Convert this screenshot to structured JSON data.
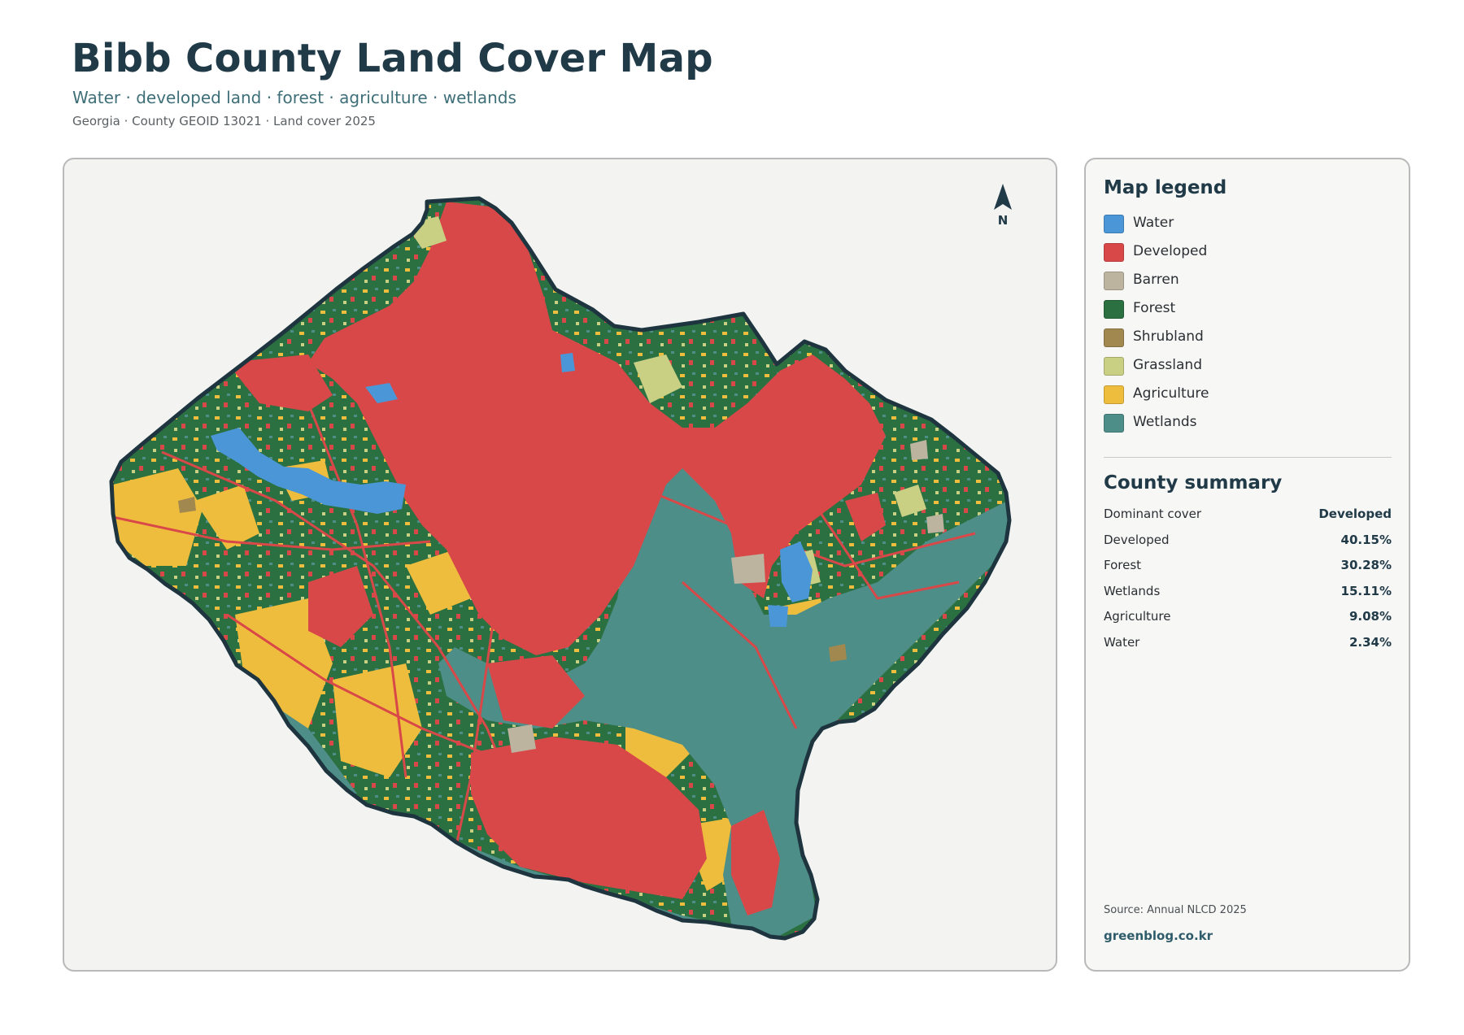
{
  "header": {
    "title": "Bibb County Land Cover Map",
    "subtitle": "Water · developed land · forest · agriculture · wetlands",
    "meta": "Georgia · County GEOID 13021 · Land cover 2025"
  },
  "map": {
    "north_label": "N"
  },
  "legend": {
    "title": "Map legend",
    "items": [
      {
        "label": "Water",
        "color": "#4a96d6"
      },
      {
        "label": "Developed",
        "color": "#d94848"
      },
      {
        "label": "Barren",
        "color": "#bdb4a0"
      },
      {
        "label": "Forest",
        "color": "#2b7041"
      },
      {
        "label": "Shrubland",
        "color": "#a0884f"
      },
      {
        "label": "Grassland",
        "color": "#c9cf83"
      },
      {
        "label": "Agriculture",
        "color": "#efbd3d"
      },
      {
        "label": "Wetlands",
        "color": "#4d8e89"
      }
    ]
  },
  "summary": {
    "title": "County summary",
    "rows": [
      {
        "key": "Dominant cover",
        "value": "Developed"
      },
      {
        "key": "Developed",
        "value": "40.15%"
      },
      {
        "key": "Forest",
        "value": "30.28%"
      },
      {
        "key": "Wetlands",
        "value": "15.11%"
      },
      {
        "key": "Agriculture",
        "value": "9.08%"
      },
      {
        "key": "Water",
        "value": "2.34%"
      }
    ]
  },
  "footer": {
    "source": "Source: Annual NLCD 2025",
    "credit": "greenblog.co.kr"
  }
}
